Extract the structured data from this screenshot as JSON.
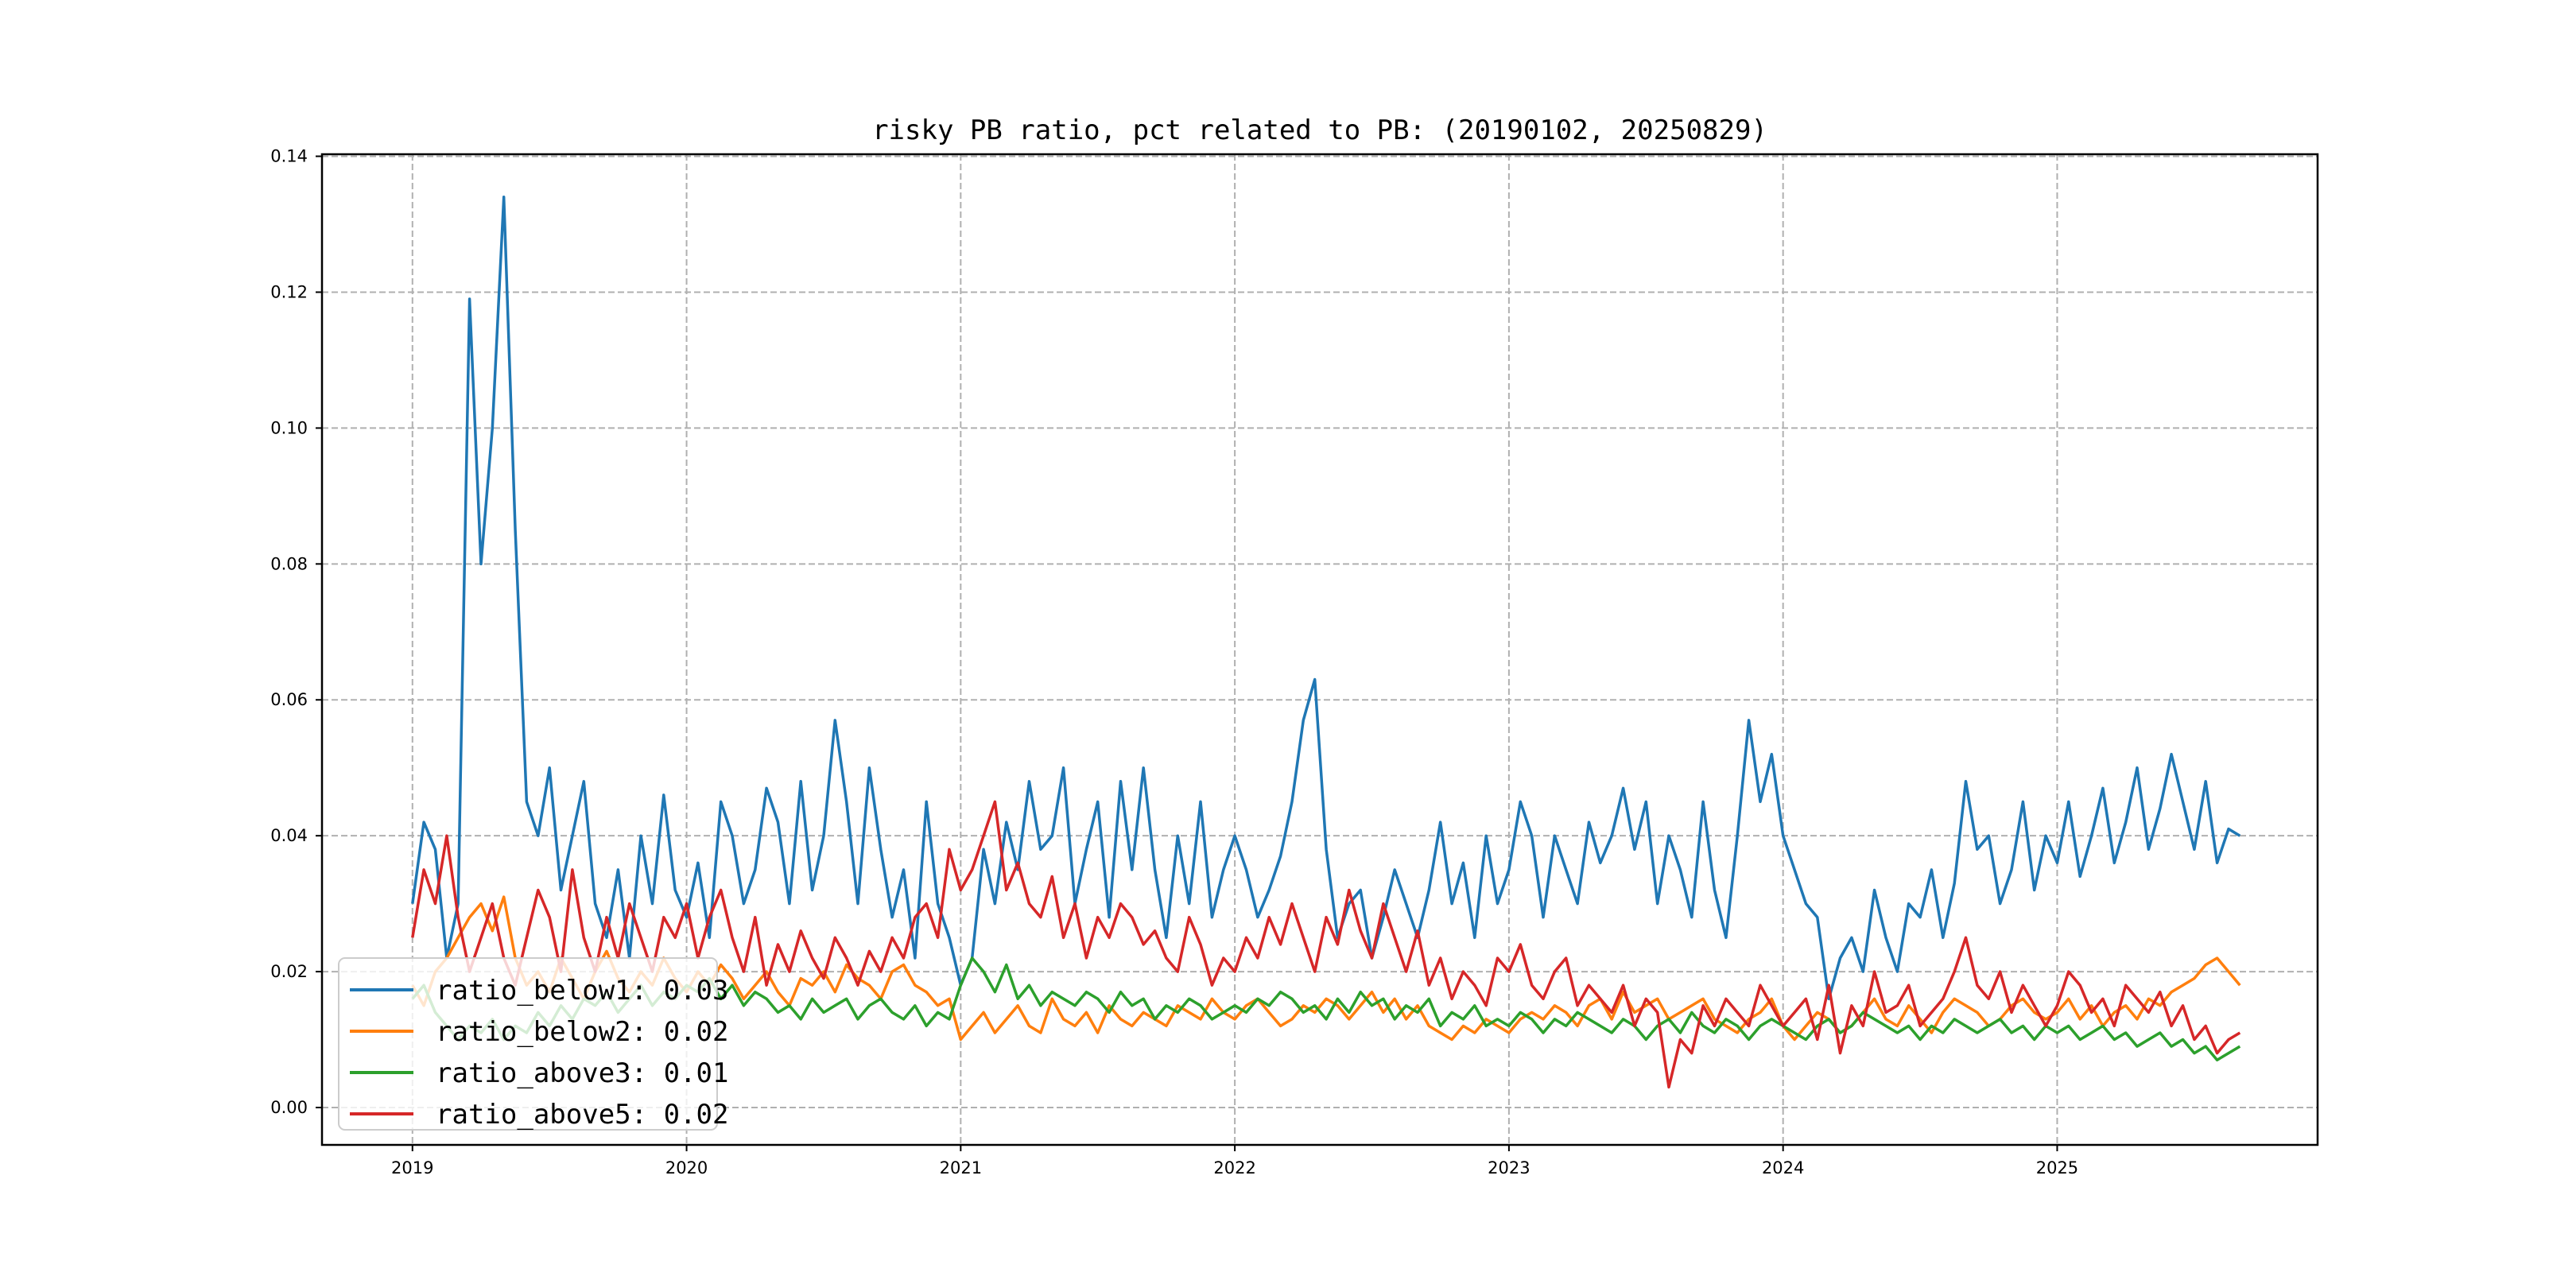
{
  "chart_data": {
    "type": "line",
    "title": "risky PB ratio, pct related to PB: (20190102, 20250829)",
    "xlabel": "",
    "ylabel": "",
    "x_start": 2019.0,
    "x_step_years": 0.041667,
    "xlim": [
      2018.67,
      2025.95
    ],
    "ylim": [
      -0.0055,
      0.1403
    ],
    "xticks": [
      2019,
      2020,
      2021,
      2022,
      2023,
      2024,
      2025
    ],
    "xtick_labels": [
      "2019",
      "2020",
      "2021",
      "2022",
      "2023",
      "2024",
      "2025"
    ],
    "yticks": [
      0,
      0.02,
      0.04,
      0.06,
      0.08,
      0.1,
      0.12,
      0.14
    ],
    "ytick_labels": [
      "0.00",
      "0.02",
      "0.04",
      "0.06",
      "0.08",
      "0.10",
      "0.12",
      "0.14"
    ],
    "grid": true,
    "legend_placement": "lower-left",
    "series": [
      {
        "name": "ratio_below1",
        "legend_label": "ratio_below1: 0.03",
        "color": "#1f77b4",
        "values": [
          0.03,
          0.042,
          0.038,
          0.022,
          0.03,
          0.119,
          0.08,
          0.1,
          0.134,
          0.085,
          0.045,
          0.04,
          0.05,
          0.032,
          0.04,
          0.048,
          0.03,
          0.025,
          0.035,
          0.022,
          0.04,
          0.03,
          0.046,
          0.032,
          0.028,
          0.036,
          0.025,
          0.045,
          0.04,
          0.03,
          0.035,
          0.047,
          0.042,
          0.03,
          0.048,
          0.032,
          0.04,
          0.057,
          0.045,
          0.03,
          0.05,
          0.038,
          0.028,
          0.035,
          0.022,
          0.045,
          0.03,
          0.025,
          0.018,
          0.022,
          0.038,
          0.03,
          0.042,
          0.035,
          0.048,
          0.038,
          0.04,
          0.05,
          0.03,
          0.038,
          0.045,
          0.028,
          0.048,
          0.035,
          0.05,
          0.035,
          0.025,
          0.04,
          0.03,
          0.045,
          0.028,
          0.035,
          0.04,
          0.035,
          0.028,
          0.032,
          0.037,
          0.045,
          0.057,
          0.063,
          0.038,
          0.025,
          0.03,
          0.032,
          0.022,
          0.028,
          0.035,
          0.03,
          0.025,
          0.032,
          0.042,
          0.03,
          0.036,
          0.025,
          0.04,
          0.03,
          0.035,
          0.045,
          0.04,
          0.028,
          0.04,
          0.035,
          0.03,
          0.042,
          0.036,
          0.04,
          0.047,
          0.038,
          0.045,
          0.03,
          0.04,
          0.035,
          0.028,
          0.045,
          0.032,
          0.025,
          0.04,
          0.057,
          0.045,
          0.052,
          0.04,
          0.035,
          0.03,
          0.028,
          0.016,
          0.022,
          0.025,
          0.02,
          0.032,
          0.025,
          0.02,
          0.03,
          0.028,
          0.035,
          0.025,
          0.033,
          0.048,
          0.038,
          0.04,
          0.03,
          0.035,
          0.045,
          0.032,
          0.04,
          0.036,
          0.045,
          0.034,
          0.04,
          0.047,
          0.036,
          0.042,
          0.05,
          0.038,
          0.044,
          0.052,
          0.045,
          0.038,
          0.048,
          0.036,
          0.041,
          0.04
        ]
      },
      {
        "name": "ratio_below2",
        "legend_label": "ratio_below2: 0.02",
        "color": "#ff7f0e",
        "values": [
          0.018,
          0.015,
          0.02,
          0.022,
          0.025,
          0.028,
          0.03,
          0.026,
          0.031,
          0.022,
          0.018,
          0.02,
          0.017,
          0.022,
          0.019,
          0.016,
          0.02,
          0.023,
          0.019,
          0.017,
          0.02,
          0.018,
          0.022,
          0.019,
          0.017,
          0.02,
          0.018,
          0.021,
          0.019,
          0.016,
          0.018,
          0.02,
          0.017,
          0.015,
          0.019,
          0.018,
          0.02,
          0.017,
          0.021,
          0.019,
          0.018,
          0.016,
          0.02,
          0.021,
          0.018,
          0.017,
          0.015,
          0.016,
          0.01,
          0.012,
          0.014,
          0.011,
          0.013,
          0.015,
          0.012,
          0.011,
          0.016,
          0.013,
          0.012,
          0.014,
          0.011,
          0.015,
          0.013,
          0.012,
          0.014,
          0.013,
          0.012,
          0.015,
          0.014,
          0.013,
          0.016,
          0.014,
          0.013,
          0.015,
          0.016,
          0.014,
          0.012,
          0.013,
          0.015,
          0.014,
          0.016,
          0.015,
          0.013,
          0.015,
          0.017,
          0.014,
          0.016,
          0.013,
          0.015,
          0.012,
          0.011,
          0.01,
          0.012,
          0.011,
          0.013,
          0.012,
          0.011,
          0.013,
          0.014,
          0.013,
          0.015,
          0.014,
          0.012,
          0.015,
          0.016,
          0.013,
          0.017,
          0.014,
          0.015,
          0.016,
          0.013,
          0.014,
          0.015,
          0.016,
          0.013,
          0.012,
          0.011,
          0.013,
          0.014,
          0.016,
          0.012,
          0.01,
          0.012,
          0.014,
          0.013,
          0.011,
          0.012,
          0.014,
          0.016,
          0.013,
          0.012,
          0.015,
          0.013,
          0.011,
          0.014,
          0.016,
          0.015,
          0.014,
          0.012,
          0.013,
          0.015,
          0.016,
          0.014,
          0.013,
          0.014,
          0.016,
          0.013,
          0.015,
          0.012,
          0.014,
          0.015,
          0.013,
          0.016,
          0.015,
          0.017,
          0.018,
          0.019,
          0.021,
          0.022,
          0.02,
          0.018
        ]
      },
      {
        "name": "ratio_above3",
        "legend_label": "ratio_above3: 0.01",
        "color": "#2ca02c",
        "values": [
          0.016,
          0.018,
          0.014,
          0.012,
          0.01,
          0.012,
          0.011,
          0.013,
          0.01,
          0.012,
          0.011,
          0.014,
          0.012,
          0.015,
          0.013,
          0.016,
          0.015,
          0.017,
          0.014,
          0.016,
          0.018,
          0.015,
          0.017,
          0.016,
          0.018,
          0.017,
          0.019,
          0.016,
          0.018,
          0.015,
          0.017,
          0.016,
          0.014,
          0.015,
          0.013,
          0.016,
          0.014,
          0.015,
          0.016,
          0.013,
          0.015,
          0.016,
          0.014,
          0.013,
          0.015,
          0.012,
          0.014,
          0.013,
          0.018,
          0.022,
          0.02,
          0.017,
          0.021,
          0.016,
          0.018,
          0.015,
          0.017,
          0.016,
          0.015,
          0.017,
          0.016,
          0.014,
          0.017,
          0.015,
          0.016,
          0.013,
          0.015,
          0.014,
          0.016,
          0.015,
          0.013,
          0.014,
          0.015,
          0.014,
          0.016,
          0.015,
          0.017,
          0.016,
          0.014,
          0.015,
          0.013,
          0.016,
          0.014,
          0.017,
          0.015,
          0.016,
          0.013,
          0.015,
          0.014,
          0.016,
          0.012,
          0.014,
          0.013,
          0.015,
          0.012,
          0.013,
          0.012,
          0.014,
          0.013,
          0.011,
          0.013,
          0.012,
          0.014,
          0.013,
          0.012,
          0.011,
          0.013,
          0.012,
          0.01,
          0.012,
          0.013,
          0.011,
          0.014,
          0.012,
          0.011,
          0.013,
          0.012,
          0.01,
          0.012,
          0.013,
          0.012,
          0.011,
          0.01,
          0.012,
          0.013,
          0.011,
          0.012,
          0.014,
          0.013,
          0.012,
          0.011,
          0.012,
          0.01,
          0.012,
          0.011,
          0.013,
          0.012,
          0.011,
          0.012,
          0.013,
          0.011,
          0.012,
          0.01,
          0.012,
          0.011,
          0.012,
          0.01,
          0.011,
          0.012,
          0.01,
          0.011,
          0.009,
          0.01,
          0.011,
          0.009,
          0.01,
          0.008,
          0.009,
          0.007,
          0.008,
          0.009
        ]
      },
      {
        "name": "ratio_above5",
        "legend_label": "ratio_above5: 0.02",
        "color": "#d62728",
        "values": [
          0.025,
          0.035,
          0.03,
          0.04,
          0.028,
          0.02,
          0.025,
          0.03,
          0.022,
          0.018,
          0.025,
          0.032,
          0.028,
          0.02,
          0.035,
          0.025,
          0.02,
          0.028,
          0.022,
          0.03,
          0.025,
          0.02,
          0.028,
          0.025,
          0.03,
          0.022,
          0.028,
          0.032,
          0.025,
          0.02,
          0.028,
          0.018,
          0.024,
          0.02,
          0.026,
          0.022,
          0.019,
          0.025,
          0.022,
          0.018,
          0.023,
          0.02,
          0.025,
          0.022,
          0.028,
          0.03,
          0.025,
          0.038,
          0.032,
          0.035,
          0.04,
          0.045,
          0.032,
          0.036,
          0.03,
          0.028,
          0.034,
          0.025,
          0.03,
          0.022,
          0.028,
          0.025,
          0.03,
          0.028,
          0.024,
          0.026,
          0.022,
          0.02,
          0.028,
          0.024,
          0.018,
          0.022,
          0.02,
          0.025,
          0.022,
          0.028,
          0.024,
          0.03,
          0.025,
          0.02,
          0.028,
          0.024,
          0.032,
          0.026,
          0.022,
          0.03,
          0.025,
          0.02,
          0.026,
          0.018,
          0.022,
          0.016,
          0.02,
          0.018,
          0.015,
          0.022,
          0.02,
          0.024,
          0.018,
          0.016,
          0.02,
          0.022,
          0.015,
          0.018,
          0.016,
          0.014,
          0.018,
          0.012,
          0.016,
          0.014,
          0.003,
          0.01,
          0.008,
          0.015,
          0.012,
          0.016,
          0.014,
          0.012,
          0.018,
          0.015,
          0.012,
          0.014,
          0.016,
          0.01,
          0.018,
          0.008,
          0.015,
          0.012,
          0.02,
          0.014,
          0.015,
          0.018,
          0.012,
          0.014,
          0.016,
          0.02,
          0.025,
          0.018,
          0.016,
          0.02,
          0.014,
          0.018,
          0.015,
          0.012,
          0.015,
          0.02,
          0.018,
          0.014,
          0.016,
          0.012,
          0.018,
          0.016,
          0.014,
          0.017,
          0.012,
          0.015,
          0.01,
          0.012,
          0.008,
          0.01,
          0.011
        ]
      }
    ]
  }
}
